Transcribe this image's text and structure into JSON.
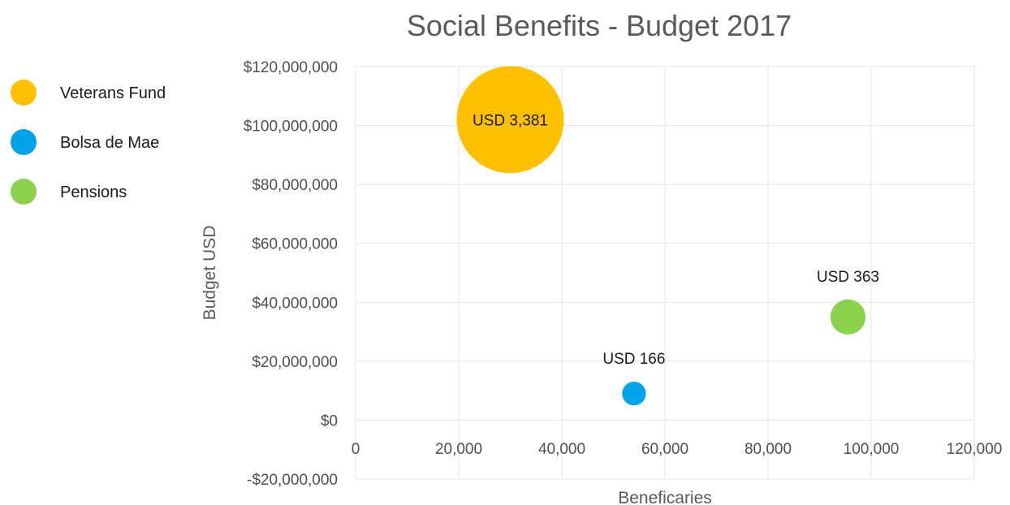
{
  "chart_data": {
    "type": "scatter",
    "subtype": "bubble",
    "title": "Social Benefits - Budget 2017",
    "xlabel": "Beneficaries",
    "ylabel": "Budget  USD",
    "xlim": [
      0,
      120000
    ],
    "ylim": [
      -20000000,
      120000000
    ],
    "xticks": [
      0,
      20000,
      40000,
      60000,
      80000,
      100000,
      120000
    ],
    "xtick_labels": [
      "0",
      "20,000",
      "40,000",
      "60,000",
      "80,000",
      "100,000",
      "120,000"
    ],
    "yticks": [
      120000000,
      100000000,
      80000000,
      60000000,
      40000000,
      20000000,
      0,
      -20000000
    ],
    "ytick_labels": [
      "$120,000,000",
      "$100,000,000",
      "$80,000,000",
      "$60,000,000",
      "$40,000,000",
      "$20,000,000",
      "$0",
      "-$20,000,000"
    ],
    "grid": true,
    "legend_position": "left",
    "series": [
      {
        "name": "Veterans Fund",
        "color": "#FFC000",
        "x": 30000,
        "y": 102000000,
        "size": 3381,
        "label": "USD 3,381",
        "label_position": "center"
      },
      {
        "name": "Bolsa de Mae",
        "color": "#00A2E8",
        "x": 54000,
        "y": 9000000,
        "size": 166,
        "label": "USD 166",
        "label_position": "above"
      },
      {
        "name": "Pensions",
        "color": "#8BD14E",
        "x": 95500,
        "y": 35000000,
        "size": 363,
        "label": "USD 363",
        "label_position": "above"
      }
    ]
  }
}
